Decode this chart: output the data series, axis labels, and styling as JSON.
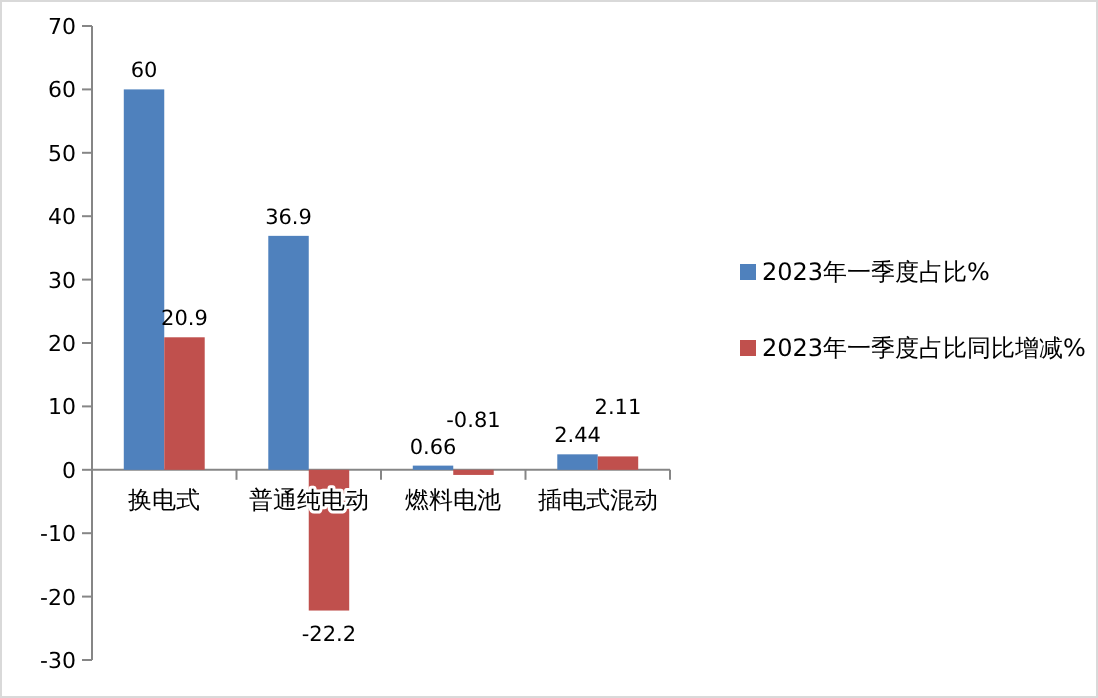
{
  "chart_data": {
    "type": "bar",
    "categories": [
      "换电式",
      "普通纯电动",
      "燃料电池",
      "插电式混动"
    ],
    "series": [
      {
        "name": "2023年一季度占比%",
        "color": "#4f81bd",
        "values": [
          60,
          36.9,
          0.66,
          2.44
        ]
      },
      {
        "name": "2023年一季度占比同比增减%",
        "color": "#c0504d",
        "values": [
          20.9,
          -22.2,
          -0.81,
          2.11
        ]
      }
    ],
    "ylim": [
      -30,
      70
    ],
    "yticks": [
      -30,
      -20,
      -10,
      0,
      10,
      20,
      30,
      40,
      50,
      60,
      70
    ],
    "data_labels": true,
    "legend": "right",
    "grid": false
  }
}
